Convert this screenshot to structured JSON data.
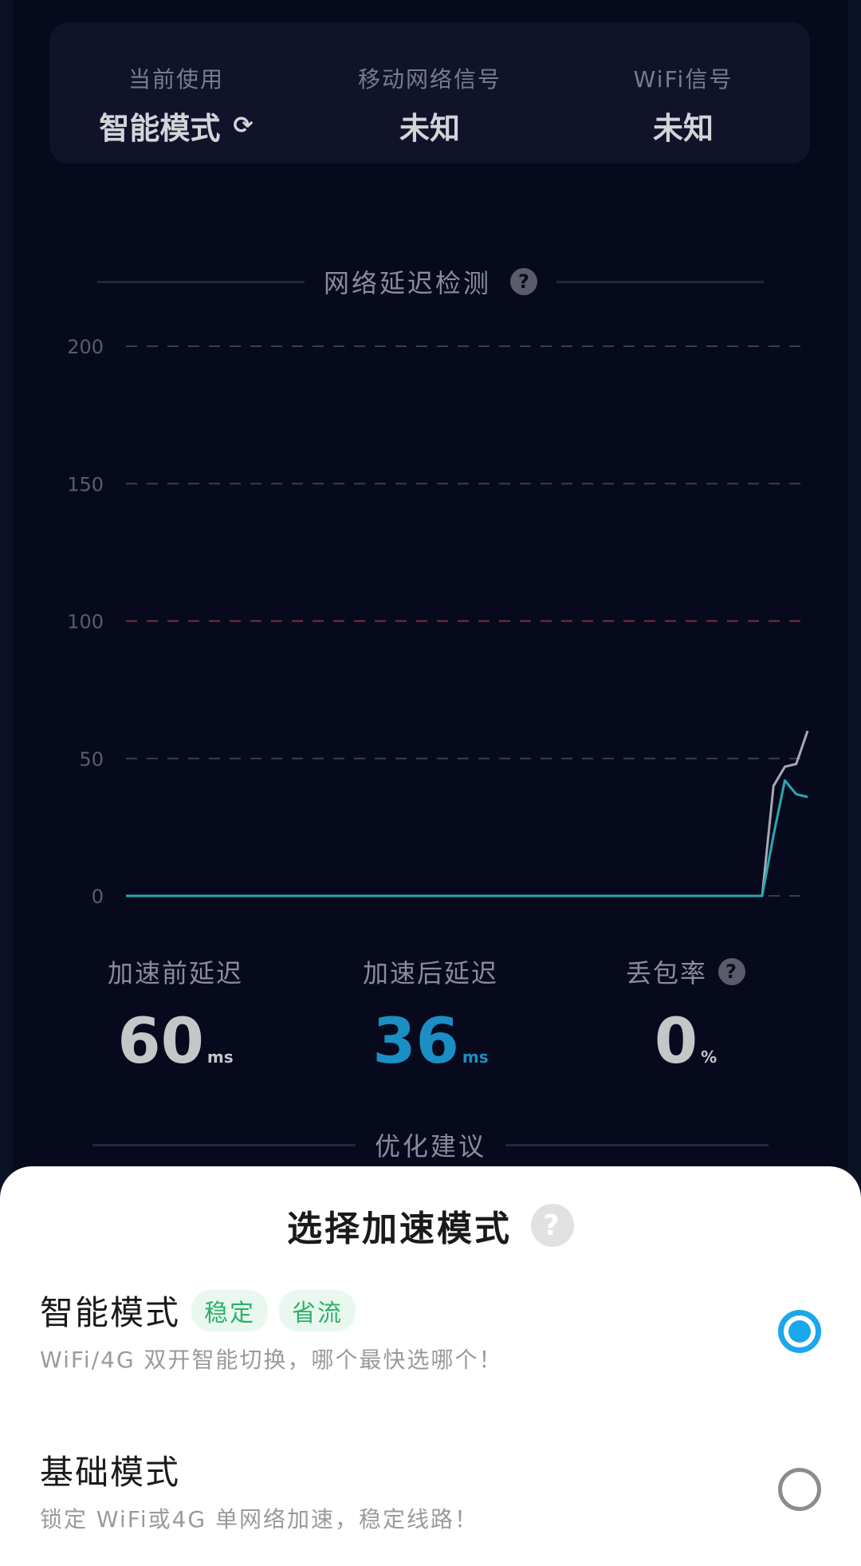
{
  "status_card": {
    "current": {
      "label": "当前使用",
      "value": "智能模式",
      "icon": "switch-icon"
    },
    "mobile": {
      "label": "移动网络信号",
      "value": "未知"
    },
    "wifi": {
      "label": "WiFi信号",
      "value": "未知"
    }
  },
  "latency_section": {
    "title": "网络延迟检测",
    "help_icon": "question-icon"
  },
  "chart_data": {
    "type": "line",
    "y_ticks": [
      "200",
      "150",
      "100",
      "50",
      "0"
    ],
    "ylim": [
      0,
      200
    ],
    "threshold": 100,
    "grid": true,
    "x": [
      0,
      10,
      20,
      30,
      40,
      50,
      56,
      57,
      58,
      59,
      60
    ],
    "series": [
      {
        "color": "#a8a8b4",
        "values": [
          0,
          0,
          0,
          0,
          0,
          0,
          0,
          40,
          47,
          48,
          60
        ]
      },
      {
        "color": "#2aa8b0",
        "values": [
          0,
          0,
          0,
          0,
          0,
          0,
          0,
          22,
          42,
          37,
          36
        ]
      }
    ]
  },
  "stats": {
    "before": {
      "label": "加速前延迟",
      "value": "60",
      "unit": "ms"
    },
    "after": {
      "label": "加速后延迟",
      "value": "36",
      "unit": "ms",
      "color": "#1a8fc4"
    },
    "loss": {
      "label": "丢包率",
      "value": "0",
      "unit": "%"
    }
  },
  "advice_section": {
    "title": "优化建议"
  },
  "sheet": {
    "title": "选择加速模式",
    "options": [
      {
        "name": "智能模式",
        "tags": [
          "稳定",
          "省流"
        ],
        "desc": "WiFi/4G 双开智能切换，哪个最快选哪个！",
        "selected": true
      },
      {
        "name": "基础模式",
        "desc": "锁定 WiFi或4G 单网络加速，稳定线路！",
        "selected": false
      }
    ],
    "accent": "#1aa7ec"
  }
}
